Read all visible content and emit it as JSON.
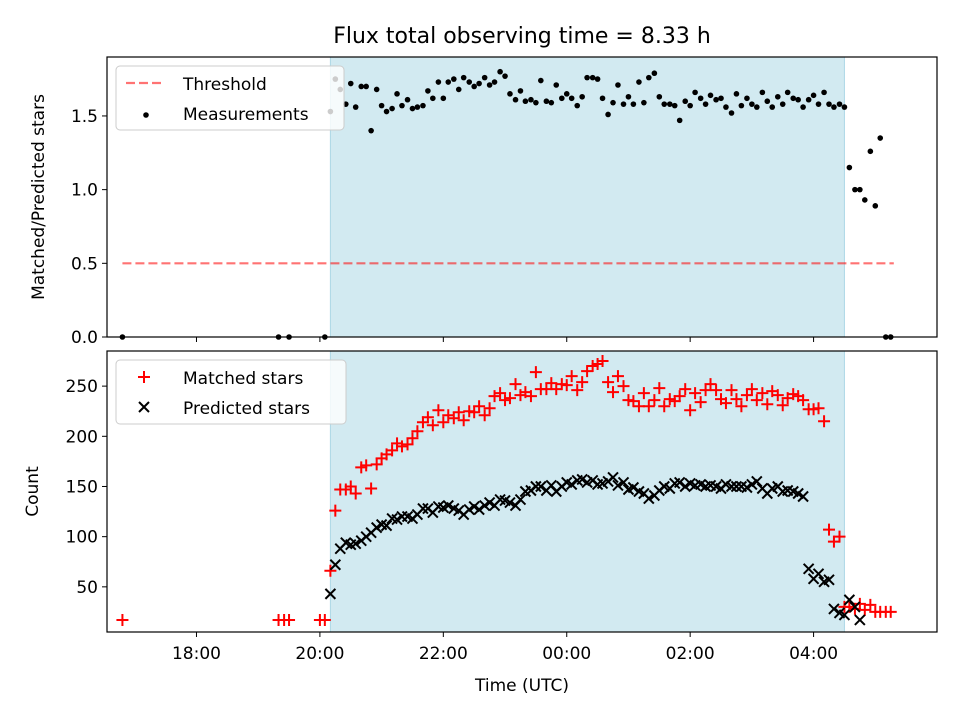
{
  "title": "Flux total observing time = 8.33 h",
  "colors": {
    "shade": "#add8e6",
    "threshold": "#ff0000",
    "measurements": "#000000",
    "matched": "#ff0000",
    "predicted": "#000000"
  },
  "chart_data": [
    {
      "type": "scatter",
      "panel": "top",
      "ylabel": "Matched/Predicted stars",
      "xlabel": "",
      "ylim": [
        0,
        1.9
      ],
      "yticks": [
        0.0,
        0.5,
        1.0,
        1.5
      ],
      "ytick_labels": [
        "0.0",
        "0.5",
        "1.0",
        "1.5"
      ],
      "x_unit": "hours since 16:00 UTC",
      "xlim": [
        0.55,
        14.0
      ],
      "legend": {
        "placement": "top-left",
        "entries": [
          "Threshold",
          "Measurements"
        ]
      },
      "shaded_span": [
        4.17,
        12.5
      ],
      "threshold": {
        "name": "Threshold",
        "y": 0.5,
        "x": [
          0.8,
          13.3
        ]
      },
      "series": [
        {
          "name": "Measurements",
          "x": [
            0.8,
            3.33,
            3.5,
            4.08,
            4.17,
            4.25,
            4.33,
            4.42,
            4.5,
            4.58,
            4.67,
            4.75,
            4.83,
            4.92,
            5.0,
            5.08,
            5.17,
            5.25,
            5.33,
            5.42,
            5.5,
            5.58,
            5.67,
            5.75,
            5.83,
            5.92,
            6.0,
            6.08,
            6.17,
            6.25,
            6.33,
            6.42,
            6.5,
            6.58,
            6.67,
            6.75,
            6.83,
            6.92,
            7.0,
            7.08,
            7.17,
            7.25,
            7.33,
            7.42,
            7.5,
            7.58,
            7.67,
            7.75,
            7.83,
            7.92,
            8.0,
            8.08,
            8.17,
            8.25,
            8.33,
            8.42,
            8.5,
            8.58,
            8.67,
            8.75,
            8.83,
            8.92,
            9.0,
            9.08,
            9.17,
            9.25,
            9.33,
            9.42,
            9.5,
            9.58,
            9.67,
            9.75,
            9.83,
            9.92,
            10.0,
            10.08,
            10.17,
            10.25,
            10.33,
            10.42,
            10.5,
            10.58,
            10.67,
            10.75,
            10.83,
            10.92,
            11.0,
            11.08,
            11.17,
            11.25,
            11.33,
            11.42,
            11.5,
            11.58,
            11.67,
            11.75,
            11.83,
            11.92,
            12.0,
            12.08,
            12.17,
            12.25,
            12.33,
            12.42,
            12.5,
            12.58,
            12.67,
            12.75,
            12.83,
            12.92,
            13.0,
            13.08,
            13.17,
            13.25
          ],
          "y": [
            0.0,
            0.0,
            0.0,
            0.0,
            1.53,
            1.75,
            1.68,
            1.58,
            1.72,
            1.56,
            1.7,
            1.7,
            1.4,
            1.68,
            1.57,
            1.53,
            1.55,
            1.65,
            1.57,
            1.61,
            1.55,
            1.56,
            1.57,
            1.67,
            1.62,
            1.73,
            1.62,
            1.73,
            1.75,
            1.68,
            1.76,
            1.73,
            1.7,
            1.72,
            1.76,
            1.71,
            1.73,
            1.8,
            1.77,
            1.65,
            1.61,
            1.67,
            1.6,
            1.61,
            1.59,
            1.74,
            1.6,
            1.59,
            1.71,
            1.62,
            1.65,
            1.62,
            1.57,
            1.63,
            1.76,
            1.76,
            1.75,
            1.62,
            1.51,
            1.59,
            1.71,
            1.58,
            1.63,
            1.58,
            1.73,
            1.59,
            1.76,
            1.79,
            1.63,
            1.58,
            1.58,
            1.57,
            1.47,
            1.6,
            1.57,
            1.66,
            1.62,
            1.58,
            1.64,
            1.61,
            1.62,
            1.56,
            1.52,
            1.65,
            1.57,
            1.62,
            1.58,
            1.56,
            1.66,
            1.6,
            1.56,
            1.63,
            1.58,
            1.66,
            1.62,
            1.61,
            1.56,
            1.61,
            1.64,
            1.58,
            1.66,
            1.58,
            1.56,
            1.58,
            1.56,
            1.15,
            1.0,
            1.0,
            0.93,
            1.26,
            0.89,
            1.35,
            0.0,
            0.0
          ]
        }
      ]
    },
    {
      "type": "scatter",
      "panel": "bottom",
      "ylabel": "Count",
      "xlabel": "Time (UTC)",
      "ylim": [
        5,
        285
      ],
      "yticks": [
        50,
        100,
        150,
        200,
        250
      ],
      "ytick_labels": [
        "50",
        "100",
        "150",
        "200",
        "250"
      ],
      "x_unit": "hours since 16:00 UTC",
      "xlim": [
        0.55,
        14.0
      ],
      "xticks": [
        2,
        4,
        6,
        8,
        10,
        12
      ],
      "xtick_labels": [
        "18:00",
        "20:00",
        "22:00",
        "00:00",
        "02:00",
        "04:00"
      ],
      "legend": {
        "placement": "top-left",
        "entries": [
          "Matched stars",
          "Predicted stars"
        ]
      },
      "shaded_span": [
        4.17,
        12.5
      ],
      "series": [
        {
          "name": "Matched stars",
          "marker": "plus",
          "x": [
            0.8,
            3.33,
            3.42,
            3.5,
            4.0,
            4.08,
            4.17,
            4.25,
            4.33,
            4.42,
            4.5,
            4.58,
            4.67,
            4.75,
            4.83,
            4.92,
            5.0,
            5.08,
            5.17,
            5.25,
            5.33,
            5.42,
            5.5,
            5.58,
            5.67,
            5.75,
            5.83,
            5.92,
            6.0,
            6.08,
            6.17,
            6.25,
            6.33,
            6.42,
            6.5,
            6.58,
            6.67,
            6.75,
            6.83,
            6.92,
            7.0,
            7.08,
            7.17,
            7.25,
            7.33,
            7.42,
            7.5,
            7.58,
            7.67,
            7.75,
            7.83,
            7.92,
            8.0,
            8.08,
            8.17,
            8.25,
            8.33,
            8.42,
            8.5,
            8.58,
            8.67,
            8.75,
            8.83,
            8.92,
            9.0,
            9.08,
            9.17,
            9.25,
            9.33,
            9.42,
            9.5,
            9.58,
            9.67,
            9.75,
            9.83,
            9.92,
            10.0,
            10.08,
            10.17,
            10.25,
            10.33,
            10.42,
            10.5,
            10.58,
            10.67,
            10.75,
            10.83,
            10.92,
            11.0,
            11.08,
            11.17,
            11.25,
            11.33,
            11.42,
            11.5,
            11.58,
            11.67,
            11.75,
            11.83,
            11.92,
            12.0,
            12.08,
            12.17,
            12.25,
            12.33,
            12.42,
            12.5,
            12.58,
            12.67,
            12.75,
            12.83,
            12.92,
            13.0,
            13.08,
            13.17,
            13.25
          ],
          "y": [
            17,
            17,
            17,
            17,
            17,
            17,
            66,
            126,
            147,
            147,
            150,
            143,
            169,
            171,
            148,
            172,
            178,
            182,
            186,
            193,
            190,
            192,
            198,
            205,
            214,
            219,
            211,
            226,
            214,
            221,
            218,
            224,
            216,
            225,
            224,
            230,
            221,
            228,
            240,
            243,
            236,
            238,
            252,
            241,
            244,
            240,
            264,
            247,
            247,
            253,
            247,
            252,
            251,
            260,
            246,
            254,
            265,
            270,
            272,
            275,
            254,
            244,
            260,
            250,
            236,
            235,
            230,
            243,
            230,
            236,
            248,
            230,
            237,
            235,
            240,
            247,
            226,
            243,
            234,
            246,
            252,
            246,
            237,
            233,
            246,
            237,
            230,
            241,
            247,
            236,
            243,
            232,
            245,
            241,
            231,
            238,
            242,
            240,
            236,
            227,
            227,
            228,
            215,
            107,
            95,
            100,
            30,
            30,
            28,
            33,
            27,
            32,
            25,
            25,
            25,
            25
          ]
        },
        {
          "name": "Predicted stars",
          "marker": "x",
          "x": [
            4.17,
            4.25,
            4.33,
            4.42,
            4.5,
            4.58,
            4.67,
            4.75,
            4.83,
            4.92,
            5.0,
            5.08,
            5.17,
            5.25,
            5.33,
            5.42,
            5.5,
            5.58,
            5.67,
            5.75,
            5.83,
            5.92,
            6.0,
            6.08,
            6.17,
            6.25,
            6.33,
            6.42,
            6.5,
            6.58,
            6.67,
            6.75,
            6.83,
            6.92,
            7.0,
            7.08,
            7.17,
            7.25,
            7.33,
            7.42,
            7.5,
            7.58,
            7.67,
            7.75,
            7.83,
            7.92,
            8.0,
            8.08,
            8.17,
            8.25,
            8.33,
            8.42,
            8.5,
            8.58,
            8.67,
            8.75,
            8.83,
            8.92,
            9.0,
            9.08,
            9.17,
            9.25,
            9.33,
            9.42,
            9.5,
            9.58,
            9.67,
            9.75,
            9.83,
            9.92,
            10.0,
            10.08,
            10.17,
            10.25,
            10.33,
            10.42,
            10.5,
            10.58,
            10.67,
            10.75,
            10.83,
            10.92,
            11.0,
            11.08,
            11.17,
            11.25,
            11.33,
            11.42,
            11.5,
            11.58,
            11.67,
            11.75,
            11.83,
            11.92,
            12.0,
            12.08,
            12.17,
            12.25,
            12.33,
            12.42,
            12.5,
            12.58,
            12.67,
            12.75
          ],
          "y": [
            43,
            72,
            88,
            94,
            92,
            93,
            96,
            100,
            104,
            109,
            112,
            111,
            118,
            117,
            120,
            120,
            118,
            122,
            128,
            128,
            124,
            130,
            129,
            131,
            128,
            126,
            122,
            127,
            130,
            127,
            131,
            134,
            131,
            137,
            136,
            134,
            131,
            137,
            145,
            146,
            150,
            150,
            146,
            151,
            145,
            150,
            154,
            152,
            156,
            157,
            154,
            156,
            152,
            153,
            155,
            159,
            151,
            154,
            147,
            149,
            145,
            143,
            138,
            141,
            146,
            150,
            148,
            153,
            154,
            150,
            153,
            151,
            152,
            150,
            151,
            150,
            148,
            152,
            150,
            150,
            150,
            149,
            152,
            155,
            148,
            143,
            148,
            150,
            145,
            146,
            145,
            143,
            140,
            68,
            58,
            63,
            55,
            57,
            28,
            24,
            22,
            37,
            30,
            17
          ]
        }
      ]
    }
  ]
}
